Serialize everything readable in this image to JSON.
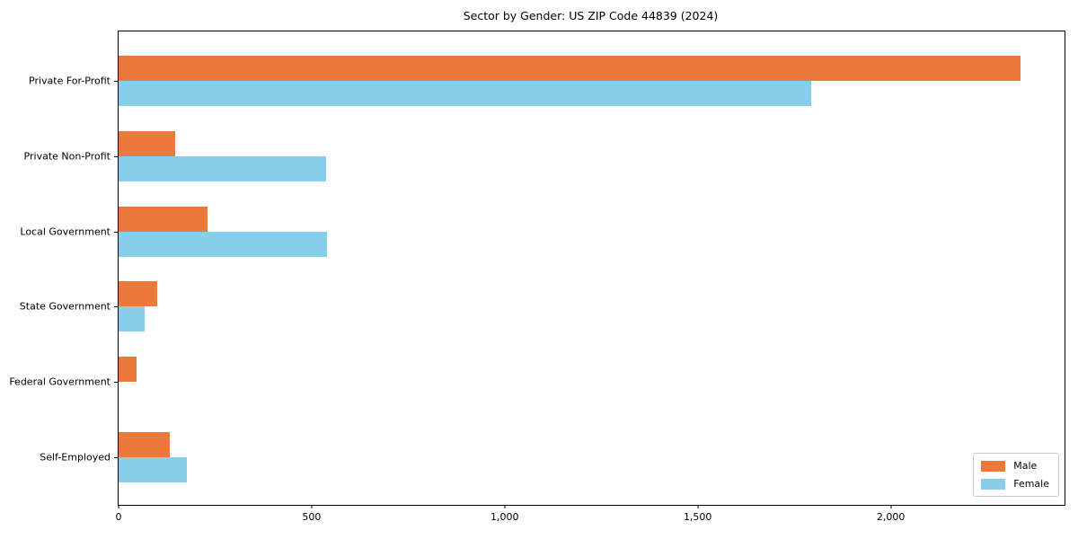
{
  "chart_data": {
    "type": "bar",
    "orientation": "horizontal",
    "title": "Sector by Gender: US ZIP Code 44839 (2024)",
    "categories": [
      "Private For-Profit",
      "Private Non-Profit",
      "Local Government",
      "State Government",
      "Federal Government",
      "Self-Employed"
    ],
    "series": [
      {
        "name": "Male",
        "color": "#e97a3c",
        "values": [
          2337,
          146,
          230,
          100,
          47,
          133
        ]
      },
      {
        "name": "Female",
        "color": "#87ceeb",
        "values": [
          1795,
          537,
          540,
          67,
          0,
          177
        ]
      }
    ],
    "xlabel": "",
    "ylabel": "",
    "xlim": [
      0,
      2450
    ],
    "xticks": [
      0,
      500,
      1000,
      1500,
      2000
    ],
    "xtick_labels": [
      "0",
      "500",
      "1,000",
      "1,500",
      "2,000"
    ],
    "grid": false,
    "legend_position": "lower right",
    "colors": {
      "spine": "#000000",
      "background": "#ffffff",
      "legend_border": "#cccccc",
      "text": "#000000"
    }
  }
}
